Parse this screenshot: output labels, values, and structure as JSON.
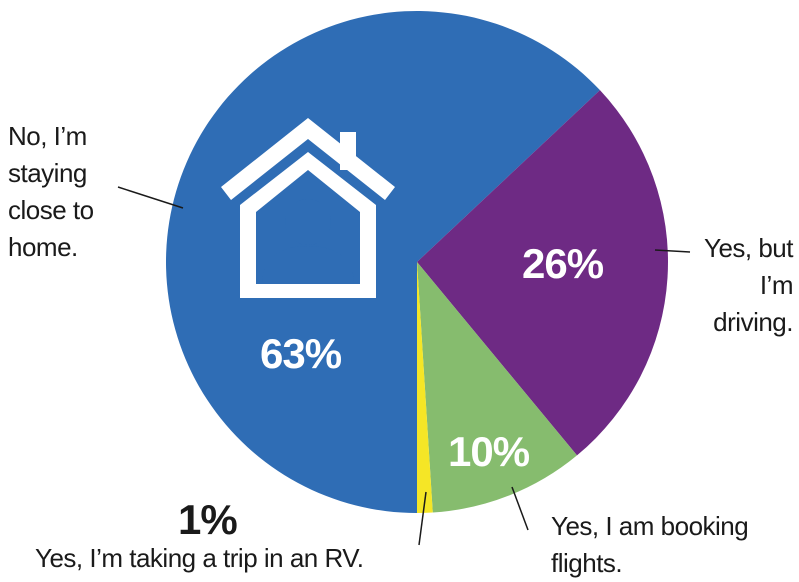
{
  "chart_data": {
    "type": "pie",
    "categories": [
      "No, I’m staying close to home.",
      "Yes, but I’m driving.",
      "Yes, I am booking flights.",
      "Yes, I’m taking a trip in an RV."
    ],
    "values": [
      63,
      26,
      10,
      1
    ],
    "value_labels": [
      "63%",
      "26%",
      "10%",
      "1%"
    ],
    "colors": [
      "#2f6db5",
      "#6e2a84",
      "#86bc6e",
      "#f5e626"
    ]
  }
}
